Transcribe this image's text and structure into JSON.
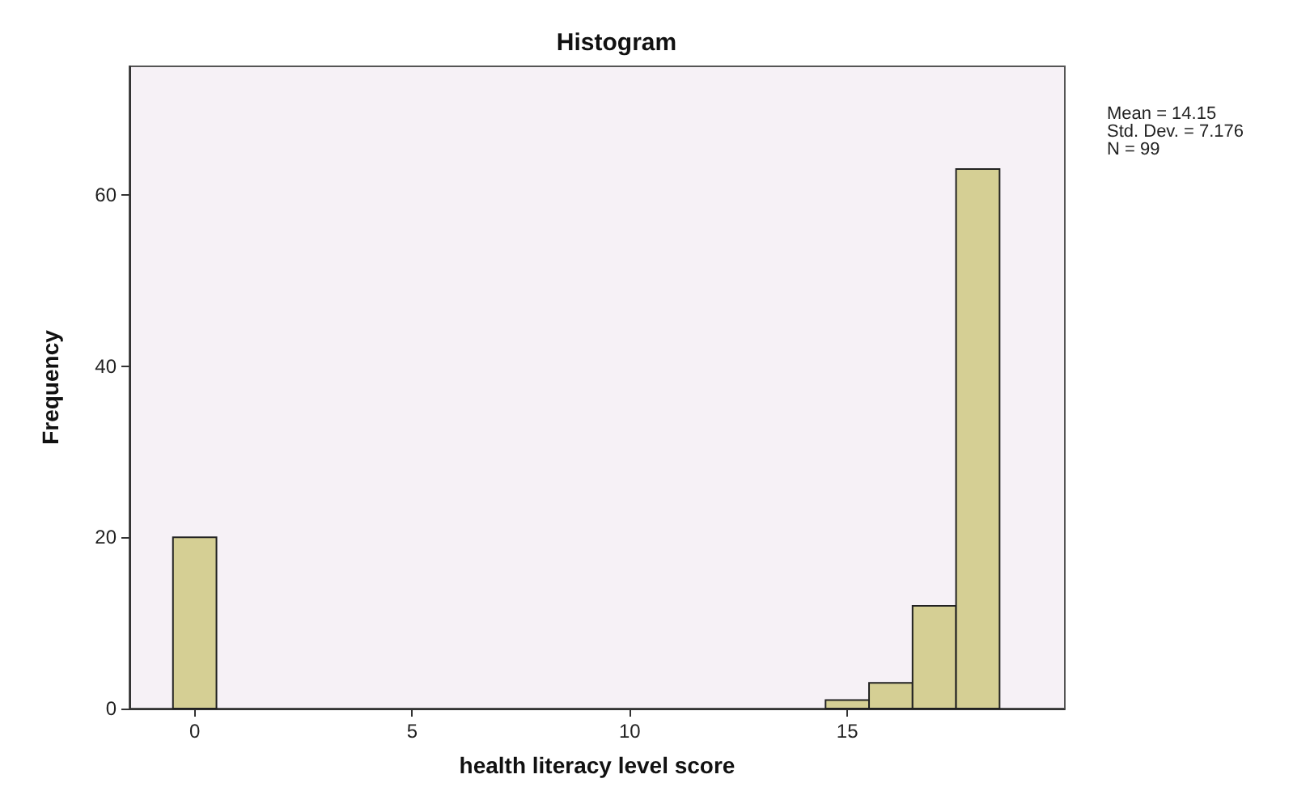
{
  "chart_data": {
    "type": "histogram",
    "title": "Histogram",
    "xlabel": "health literacy level score",
    "ylabel": "Frequency",
    "bins": [
      -0.5,
      0.5,
      1.5,
      2.5,
      3.5,
      4.5,
      5.5,
      6.5,
      7.5,
      8.5,
      9.5,
      10.5,
      11.5,
      12.5,
      13.5,
      14.5,
      15.5,
      16.5,
      17.5,
      18.5
    ],
    "values": [
      20,
      0,
      0,
      0,
      0,
      0,
      0,
      0,
      0,
      0,
      0,
      0,
      0,
      0,
      0,
      1,
      3,
      12,
      63
    ],
    "color": "#d5cf94",
    "xlim": [
      -1.5,
      20
    ],
    "xticks": [
      0,
      5,
      10,
      15
    ],
    "ylim": [
      0,
      75
    ],
    "yticks": [
      0,
      20,
      40,
      60
    ],
    "grid": false,
    "annotations": [
      "Mean = 14.15\nStd. Dev. = 7.176\nN = 99"
    ]
  }
}
